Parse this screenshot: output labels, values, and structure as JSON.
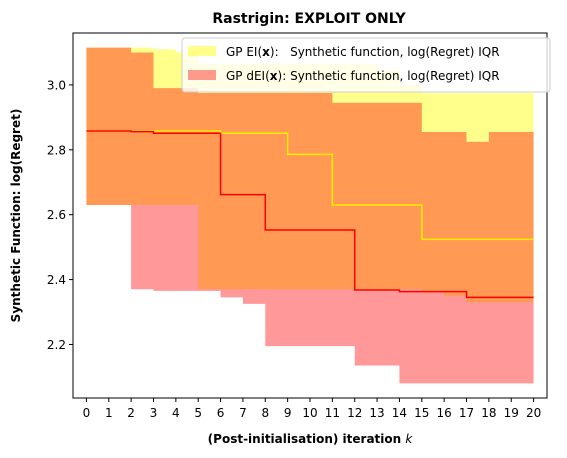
{
  "chart_data": {
    "type": "line",
    "title": "Rastrigin: EXPLOIT ONLY",
    "xlabel": "(Post-initialisation) iteration",
    "xlabel_symbol": "k",
    "ylabel": "Synthetic Function: log(Regret)",
    "xlim": [
      -0.6,
      20.6
    ],
    "ylim": [
      2.035,
      3.16
    ],
    "xticks": [
      0,
      1,
      2,
      3,
      4,
      5,
      6,
      7,
      8,
      9,
      10,
      11,
      12,
      13,
      14,
      15,
      16,
      17,
      18,
      19,
      20
    ],
    "yticks": [
      2.2,
      2.4,
      2.6,
      2.8,
      3.0
    ],
    "ytick_labels": [
      "2.2",
      "2.4",
      "2.6",
      "2.8",
      "3.0"
    ],
    "grid": false,
    "legend_position": "top-right",
    "x": [
      0,
      1,
      2,
      3,
      4,
      5,
      6,
      7,
      8,
      9,
      10,
      11,
      12,
      13,
      14,
      15,
      16,
      17,
      18,
      19,
      20
    ],
    "series": [
      {
        "name_parts": [
          "GP EI(",
          "x",
          "):   Synthetic function, log(Regret) IQR"
        ],
        "kind": "band",
        "color": "#ffff00",
        "opacity": 0.45,
        "upper": [
          3.115,
          3.115,
          3.115,
          3.11,
          3.1,
          3.065,
          3.065,
          3.065,
          3.065,
          3.065,
          3.065,
          3.065,
          3.065,
          3.045,
          3.0,
          2.975,
          2.975,
          2.975,
          2.975,
          2.975,
          2.975
        ],
        "lower": [
          2.63,
          2.63,
          2.63,
          2.63,
          2.63,
          2.37,
          2.37,
          2.37,
          2.37,
          2.37,
          2.37,
          2.37,
          2.37,
          2.37,
          2.37,
          2.36,
          2.35,
          2.33,
          2.33,
          2.33,
          2.33
        ]
      },
      {
        "name_parts": [
          "GP dEI(",
          "x",
          "): Synthetic function, log(Regret) IQR"
        ],
        "kind": "band",
        "color": "#ff0000",
        "opacity": 0.4,
        "upper": [
          3.115,
          3.115,
          3.1,
          2.99,
          2.99,
          2.975,
          2.975,
          2.975,
          2.975,
          2.975,
          2.975,
          2.945,
          2.945,
          2.945,
          2.945,
          2.855,
          2.855,
          2.825,
          2.855,
          2.855,
          2.855
        ],
        "lower": [
          2.63,
          2.63,
          2.37,
          2.365,
          2.365,
          2.365,
          2.345,
          2.325,
          2.195,
          2.195,
          2.195,
          2.195,
          2.135,
          2.135,
          2.08,
          2.08,
          2.08,
          2.08,
          2.08,
          2.08,
          2.08
        ]
      },
      {
        "kind": "line",
        "color": "#ffee00",
        "values": [
          2.858,
          2.858,
          2.858,
          2.858,
          2.858,
          2.858,
          2.851,
          2.851,
          2.851,
          2.786,
          2.786,
          2.63,
          2.63,
          2.63,
          2.63,
          2.524,
          2.524,
          2.524,
          2.524,
          2.524,
          2.524
        ]
      },
      {
        "kind": "line",
        "color": "#ff0000",
        "values": [
          2.858,
          2.858,
          2.856,
          2.851,
          2.851,
          2.851,
          2.662,
          2.662,
          2.553,
          2.553,
          2.553,
          2.553,
          2.368,
          2.368,
          2.363,
          2.363,
          2.363,
          2.345,
          2.345,
          2.345,
          2.345
        ]
      }
    ]
  }
}
